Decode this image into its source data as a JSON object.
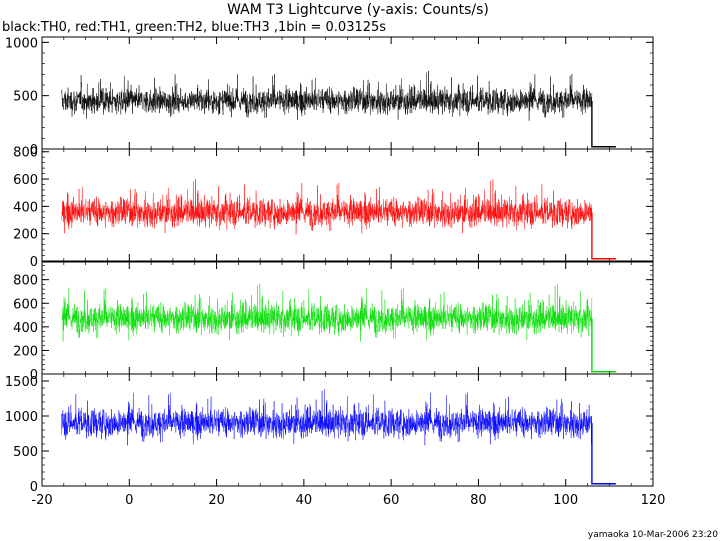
{
  "chart_data": {
    "type": "line",
    "title": "WAM T3 Lightcurve (y-axis: Counts/s)",
    "subtitle": "black:TH0, red:TH1, green:TH2, blue:TH3 ,1bin = 0.03125s",
    "footer": "yamaoka 10-Mar-2006 23:20",
    "xlim": [
      -20,
      120
    ],
    "x_ticks": [
      "-20",
      "0",
      "20",
      "40",
      "60",
      "80",
      "100",
      "120"
    ],
    "x_tick_values": [
      -20,
      0,
      20,
      40,
      60,
      80,
      100,
      120
    ],
    "data_x_range": [
      -15.5,
      106
    ],
    "tail_x_range": [
      106,
      111.5
    ],
    "colors": {
      "TH0": "#000000",
      "TH1": "#ff0000",
      "TH2": "#00dd00",
      "TH3": "#0000ff"
    },
    "panels": [
      {
        "name": "TH0",
        "color": "#000000",
        "ylim": [
          0,
          1050
        ],
        "y_ticks": [
          0,
          500,
          1000
        ],
        "y_tick_labels": [
          "0",
          "500",
          "1000"
        ],
        "mean": 450,
        "std": 110
      },
      {
        "name": "TH1",
        "color": "#ff0000",
        "ylim": [
          0,
          820
        ],
        "y_ticks": [
          0,
          200,
          400,
          600,
          800
        ],
        "y_tick_labels": [
          "0",
          "200",
          "400",
          "600",
          "800"
        ],
        "mean": 355,
        "std": 95
      },
      {
        "name": "TH2",
        "color": "#00dd00",
        "ylim": [
          0,
          950
        ],
        "y_ticks": [
          0,
          200,
          400,
          600,
          800
        ],
        "y_tick_labels": [
          "0",
          "200",
          "400",
          "600",
          "800"
        ],
        "mean": 470,
        "std": 115
      },
      {
        "name": "TH3",
        "color": "#0000ff",
        "ylim": [
          0,
          1600
        ],
        "y_ticks": [
          0,
          500,
          1000,
          1500
        ],
        "y_tick_labels": [
          "0",
          "500",
          "1000",
          "1500"
        ],
        "mean": 900,
        "std": 190
      }
    ]
  }
}
